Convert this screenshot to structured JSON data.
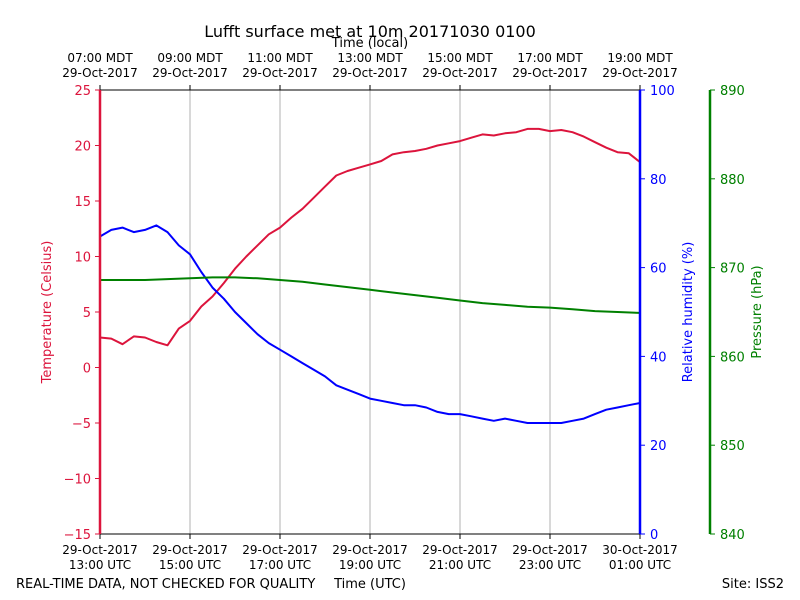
{
  "title": "Lufft surface met at 10m 20171030 0100",
  "footer": {
    "left": "REAL-TIME DATA, NOT CHECKED FOR QUALITY",
    "right": "Site: ISS2"
  },
  "colors": {
    "temperature": "#dc143c",
    "humidity": "#0000ff",
    "pressure": "#008000",
    "grid": "#b0b0b0",
    "axis": "#000000"
  },
  "chart_data": {
    "type": "line",
    "title": "Lufft surface met at 10m 20171030 0100",
    "x_axis": {
      "label": "Time (UTC)",
      "range": [
        "2017-10-29 13:00 UTC",
        "2017-10-30 01:00 UTC"
      ],
      "ticks": [
        {
          "date": "29-Oct-2017",
          "time": "13:00 UTC"
        },
        {
          "date": "29-Oct-2017",
          "time": "15:00 UTC"
        },
        {
          "date": "29-Oct-2017",
          "time": "17:00 UTC"
        },
        {
          "date": "29-Oct-2017",
          "time": "19:00 UTC"
        },
        {
          "date": "29-Oct-2017",
          "time": "21:00 UTC"
        },
        {
          "date": "29-Oct-2017",
          "time": "23:00 UTC"
        },
        {
          "date": "30-Oct-2017",
          "time": "01:00 UTC"
        }
      ]
    },
    "x_axis_top": {
      "label": "Time (local)",
      "ticks": [
        {
          "time": "07:00 MDT",
          "date": "29-Oct-2017"
        },
        {
          "time": "09:00 MDT",
          "date": "29-Oct-2017"
        },
        {
          "time": "11:00 MDT",
          "date": "29-Oct-2017"
        },
        {
          "time": "13:00 MDT",
          "date": "29-Oct-2017"
        },
        {
          "time": "15:00 MDT",
          "date": "29-Oct-2017"
        },
        {
          "time": "17:00 MDT",
          "date": "29-Oct-2017"
        },
        {
          "time": "19:00 MDT",
          "date": "29-Oct-2017"
        }
      ]
    },
    "y_axes": [
      {
        "key": "temperature",
        "label": "Temperature (Celsius)",
        "range": [
          -15,
          25
        ],
        "ticks": [
          "25",
          "20",
          "15",
          "10",
          "5",
          "0",
          "−5",
          "−10",
          "−15"
        ],
        "position": "left"
      },
      {
        "key": "humidity",
        "label": "Relative humidity (%)",
        "range": [
          0,
          100
        ],
        "ticks": [
          "100",
          "80",
          "60",
          "40",
          "20",
          "0"
        ],
        "position": "right"
      },
      {
        "key": "pressure",
        "label": "Pressure (hPa)",
        "range": [
          840,
          890
        ],
        "ticks": [
          "890",
          "880",
          "870",
          "860",
          "850",
          "840"
        ],
        "position": "far-right"
      }
    ],
    "grid": "vertical",
    "series": [
      {
        "key": "temperature",
        "axis": "temperature",
        "points": [
          [
            "2017-10-29 13:00",
            2.7
          ],
          [
            "2017-10-29 13:15",
            2.6
          ],
          [
            "2017-10-29 13:30",
            2.1
          ],
          [
            "2017-10-29 13:45",
            2.8
          ],
          [
            "2017-10-29 14:00",
            2.7
          ],
          [
            "2017-10-29 14:15",
            2.3
          ],
          [
            "2017-10-29 14:30",
            2.0
          ],
          [
            "2017-10-29 14:45",
            3.5
          ],
          [
            "2017-10-29 15:00",
            4.2
          ],
          [
            "2017-10-29 15:15",
            5.5
          ],
          [
            "2017-10-29 15:30",
            6.4
          ],
          [
            "2017-10-29 15:45",
            7.6
          ],
          [
            "2017-10-29 16:00",
            8.9
          ],
          [
            "2017-10-29 16:15",
            10.0
          ],
          [
            "2017-10-29 16:30",
            11.0
          ],
          [
            "2017-10-29 16:45",
            12.0
          ],
          [
            "2017-10-29 17:00",
            12.6
          ],
          [
            "2017-10-29 17:15",
            13.5
          ],
          [
            "2017-10-29 17:30",
            14.3
          ],
          [
            "2017-10-29 17:45",
            15.3
          ],
          [
            "2017-10-29 18:00",
            16.3
          ],
          [
            "2017-10-29 18:15",
            17.3
          ],
          [
            "2017-10-29 18:30",
            17.7
          ],
          [
            "2017-10-29 18:45",
            18.0
          ],
          [
            "2017-10-29 19:00",
            18.3
          ],
          [
            "2017-10-29 19:15",
            18.6
          ],
          [
            "2017-10-29 19:30",
            19.2
          ],
          [
            "2017-10-29 19:45",
            19.4
          ],
          [
            "2017-10-29 20:00",
            19.5
          ],
          [
            "2017-10-29 20:15",
            19.7
          ],
          [
            "2017-10-29 20:30",
            20.0
          ],
          [
            "2017-10-29 20:45",
            20.2
          ],
          [
            "2017-10-29 21:00",
            20.4
          ],
          [
            "2017-10-29 21:15",
            20.7
          ],
          [
            "2017-10-29 21:30",
            21.0
          ],
          [
            "2017-10-29 21:45",
            20.9
          ],
          [
            "2017-10-29 22:00",
            21.1
          ],
          [
            "2017-10-29 22:15",
            21.2
          ],
          [
            "2017-10-29 22:30",
            21.5
          ],
          [
            "2017-10-29 22:45",
            21.5
          ],
          [
            "2017-10-29 23:00",
            21.3
          ],
          [
            "2017-10-29 23:15",
            21.4
          ],
          [
            "2017-10-29 23:30",
            21.2
          ],
          [
            "2017-10-29 23:45",
            20.8
          ],
          [
            "2017-10-30 00:00",
            20.3
          ],
          [
            "2017-10-30 00:15",
            19.8
          ],
          [
            "2017-10-30 00:30",
            19.4
          ],
          [
            "2017-10-30 00:45",
            19.3
          ],
          [
            "2017-10-30 01:00",
            18.5
          ]
        ]
      },
      {
        "key": "humidity",
        "axis": "humidity",
        "points": [
          [
            "2017-10-29 13:00",
            67.0
          ],
          [
            "2017-10-29 13:15",
            68.5
          ],
          [
            "2017-10-29 13:30",
            69.0
          ],
          [
            "2017-10-29 13:45",
            68.0
          ],
          [
            "2017-10-29 14:00",
            68.5
          ],
          [
            "2017-10-29 14:15",
            69.5
          ],
          [
            "2017-10-29 14:30",
            68.0
          ],
          [
            "2017-10-29 14:45",
            65.0
          ],
          [
            "2017-10-29 15:00",
            63.0
          ],
          [
            "2017-10-29 15:15",
            59.0
          ],
          [
            "2017-10-29 15:30",
            55.5
          ],
          [
            "2017-10-29 15:45",
            53.0
          ],
          [
            "2017-10-29 16:00",
            50.0
          ],
          [
            "2017-10-29 16:15",
            47.5
          ],
          [
            "2017-10-29 16:30",
            45.0
          ],
          [
            "2017-10-29 16:45",
            43.0
          ],
          [
            "2017-10-29 17:00",
            41.5
          ],
          [
            "2017-10-29 17:15",
            40.0
          ],
          [
            "2017-10-29 17:30",
            38.5
          ],
          [
            "2017-10-29 17:45",
            37.0
          ],
          [
            "2017-10-29 18:00",
            35.5
          ],
          [
            "2017-10-29 18:15",
            33.5
          ],
          [
            "2017-10-29 18:30",
            32.5
          ],
          [
            "2017-10-29 18:45",
            31.5
          ],
          [
            "2017-10-29 19:00",
            30.5
          ],
          [
            "2017-10-29 19:15",
            30.0
          ],
          [
            "2017-10-29 19:30",
            29.5
          ],
          [
            "2017-10-29 19:45",
            29.0
          ],
          [
            "2017-10-29 20:00",
            29.0
          ],
          [
            "2017-10-29 20:15",
            28.5
          ],
          [
            "2017-10-29 20:30",
            27.5
          ],
          [
            "2017-10-29 20:45",
            27.0
          ],
          [
            "2017-10-29 21:00",
            27.0
          ],
          [
            "2017-10-29 21:15",
            26.5
          ],
          [
            "2017-10-29 21:30",
            26.0
          ],
          [
            "2017-10-29 21:45",
            25.5
          ],
          [
            "2017-10-29 22:00",
            26.0
          ],
          [
            "2017-10-29 22:15",
            25.5
          ],
          [
            "2017-10-29 22:30",
            25.0
          ],
          [
            "2017-10-29 22:45",
            25.0
          ],
          [
            "2017-10-29 23:00",
            25.0
          ],
          [
            "2017-10-29 23:15",
            25.0
          ],
          [
            "2017-10-29 23:30",
            25.5
          ],
          [
            "2017-10-29 23:45",
            26.0
          ],
          [
            "2017-10-30 00:00",
            27.0
          ],
          [
            "2017-10-30 00:15",
            28.0
          ],
          [
            "2017-10-30 00:30",
            28.5
          ],
          [
            "2017-10-30 00:45",
            29.0
          ],
          [
            "2017-10-30 01:00",
            29.5
          ]
        ]
      },
      {
        "key": "pressure",
        "axis": "pressure",
        "points": [
          [
            "2017-10-29 13:00",
            868.6
          ],
          [
            "2017-10-29 14:00",
            868.6
          ],
          [
            "2017-10-29 15:00",
            868.8
          ],
          [
            "2017-10-29 15:30",
            868.9
          ],
          [
            "2017-10-29 16:00",
            868.9
          ],
          [
            "2017-10-29 16:30",
            868.8
          ],
          [
            "2017-10-29 17:00",
            868.6
          ],
          [
            "2017-10-29 17:30",
            868.4
          ],
          [
            "2017-10-29 18:00",
            868.1
          ],
          [
            "2017-10-29 18:30",
            867.8
          ],
          [
            "2017-10-29 19:00",
            867.5
          ],
          [
            "2017-10-29 19:30",
            867.2
          ],
          [
            "2017-10-29 20:00",
            866.9
          ],
          [
            "2017-10-29 20:30",
            866.6
          ],
          [
            "2017-10-29 21:00",
            866.3
          ],
          [
            "2017-10-29 21:30",
            866.0
          ],
          [
            "2017-10-29 22:00",
            865.8
          ],
          [
            "2017-10-29 22:30",
            865.6
          ],
          [
            "2017-10-29 23:00",
            865.5
          ],
          [
            "2017-10-29 23:30",
            865.3
          ],
          [
            "2017-10-30 00:00",
            865.1
          ],
          [
            "2017-10-30 00:30",
            865.0
          ],
          [
            "2017-10-30 01:00",
            864.9
          ]
        ]
      }
    ]
  }
}
